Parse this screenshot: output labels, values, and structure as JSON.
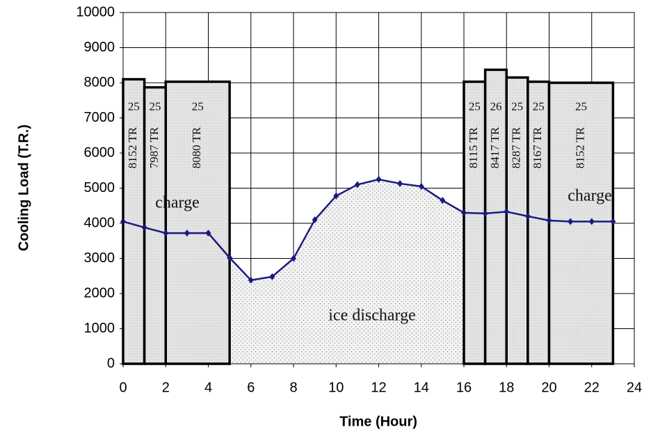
{
  "chart_data": {
    "type": "line",
    "x_label": "Time (Hour)",
    "y_label": "Cooling Load (T.R.)",
    "xlim": [
      0,
      24
    ],
    "xticks": [
      0,
      2,
      4,
      6,
      8,
      10,
      12,
      14,
      16,
      18,
      20,
      22,
      24
    ],
    "ylim": [
      0,
      10000
    ],
    "yticks": [
      0,
      1000,
      2000,
      3000,
      4000,
      5000,
      6000,
      7000,
      8000,
      9000,
      10000
    ],
    "grid": true,
    "x": [
      0,
      1,
      2,
      3,
      4,
      5,
      6,
      7,
      8,
      9,
      10,
      11,
      12,
      13,
      14,
      15,
      16,
      17,
      18,
      19,
      20,
      21,
      22,
      23
    ],
    "series": [
      {
        "color": "#1a1a80",
        "values": [
          4050,
          3880,
          3720,
          3720,
          3720,
          3020,
          2380,
          2480,
          3000,
          4100,
          4780,
          5100,
          5250,
          5130,
          5050,
          4650,
          4300,
          4280,
          4330,
          4200,
          4080,
          4050,
          4050,
          4050
        ]
      }
    ],
    "bars": [
      {
        "start": 0,
        "end": 1,
        "value": 8100,
        "temp": "25",
        "load": "8152 TR"
      },
      {
        "start": 1,
        "end": 2,
        "value": 7870,
        "temp": "25",
        "load": "7987 TR"
      },
      {
        "start": 2,
        "end": 5,
        "value": 8030,
        "temp": "25",
        "load": "8080 TR"
      },
      {
        "start": 16,
        "end": 17,
        "value": 8030,
        "temp": "25",
        "load": "8115 TR"
      },
      {
        "start": 17,
        "end": 18,
        "value": 8370,
        "temp": "26",
        "load": "8417 TR"
      },
      {
        "start": 18,
        "end": 19,
        "value": 8150,
        "temp": "25",
        "load": "8287 TR"
      },
      {
        "start": 19,
        "end": 20,
        "value": 8030,
        "temp": "25",
        "load": "8167 TR"
      },
      {
        "start": 20,
        "end": 23,
        "value": 8000,
        "temp": "25",
        "load": "8152 TR"
      }
    ],
    "annotations": [
      "charge",
      "ice discharge",
      "charge"
    ]
  }
}
